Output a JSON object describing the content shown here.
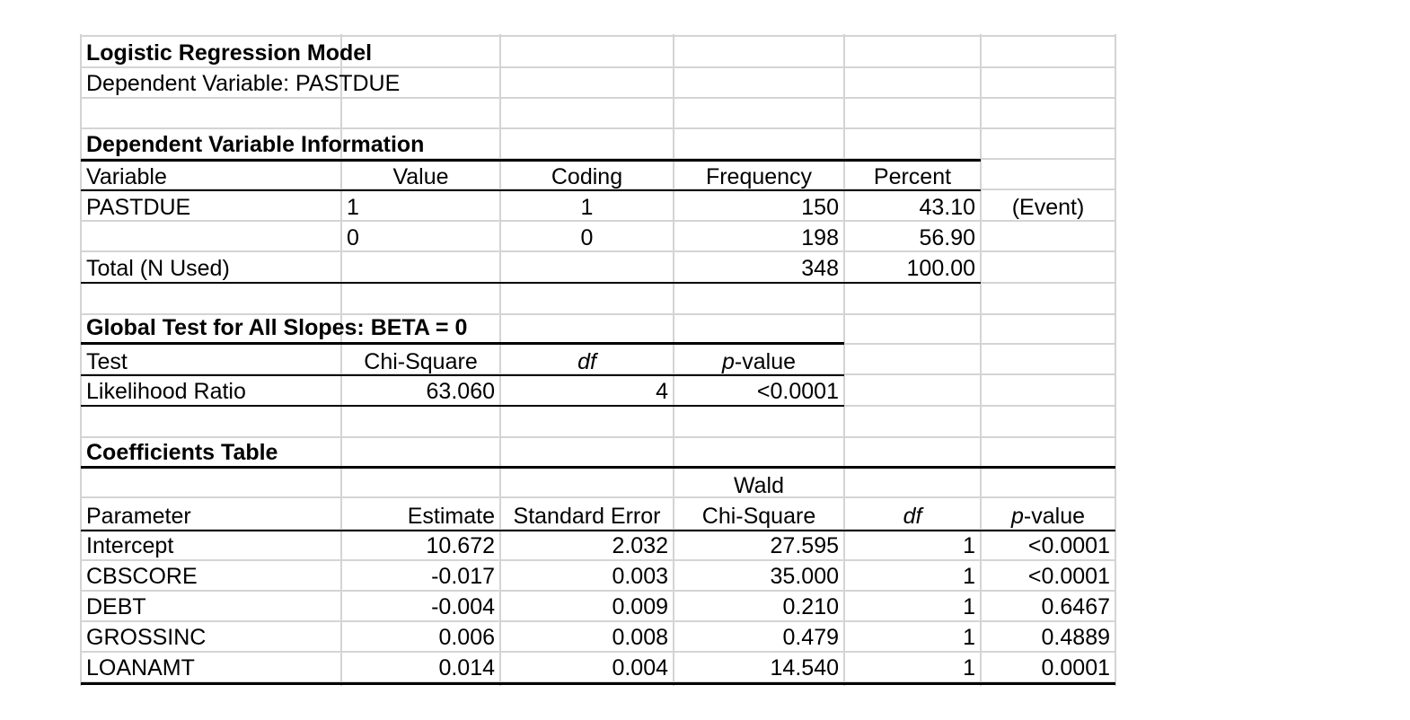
{
  "title": "Logistic Regression Model",
  "dependent_variable_line": "Dependent Variable: PASTDUE",
  "dep_info": {
    "title": "Dependent Variable Information",
    "headers": [
      "Variable",
      "Value",
      "Coding",
      "Frequency",
      "Percent"
    ],
    "rows": [
      [
        "PASTDUE",
        "1",
        "1",
        "150",
        "43.10",
        "(Event)"
      ],
      [
        "",
        "0",
        "0",
        "198",
        "56.90",
        ""
      ],
      [
        "Total (N Used)",
        "",
        "",
        "348",
        "100.00",
        ""
      ]
    ]
  },
  "global_test": {
    "title": "Global Test for All Slopes: BETA = 0",
    "headers": [
      "Test",
      "Chi-Square",
      "df",
      "p",
      "-value"
    ],
    "rows": [
      [
        "Likelihood Ratio",
        "63.060",
        "4",
        "<0.0001"
      ]
    ]
  },
  "coefficients": {
    "title": "Coefficients Table",
    "header_top": [
      "",
      "",
      "",
      "Wald",
      "",
      ""
    ],
    "headers": [
      "Parameter",
      "Estimate",
      "Standard Error",
      "Chi-Square",
      "df",
      "p",
      "-value"
    ],
    "rows": [
      [
        "Intercept",
        "10.672",
        "2.032",
        "27.595",
        "1",
        "<0.0001"
      ],
      [
        "CBSCORE",
        "-0.017",
        "0.003",
        "35.000",
        "1",
        "<0.0001"
      ],
      [
        "DEBT",
        "-0.004",
        "0.009",
        "0.210",
        "1",
        "0.6467"
      ],
      [
        "GROSSINC",
        "0.006",
        "0.008",
        "0.479",
        "1",
        "0.4889"
      ],
      [
        "LOANAMT",
        "0.014",
        "0.004",
        "14.540",
        "1",
        "0.0001"
      ]
    ]
  }
}
